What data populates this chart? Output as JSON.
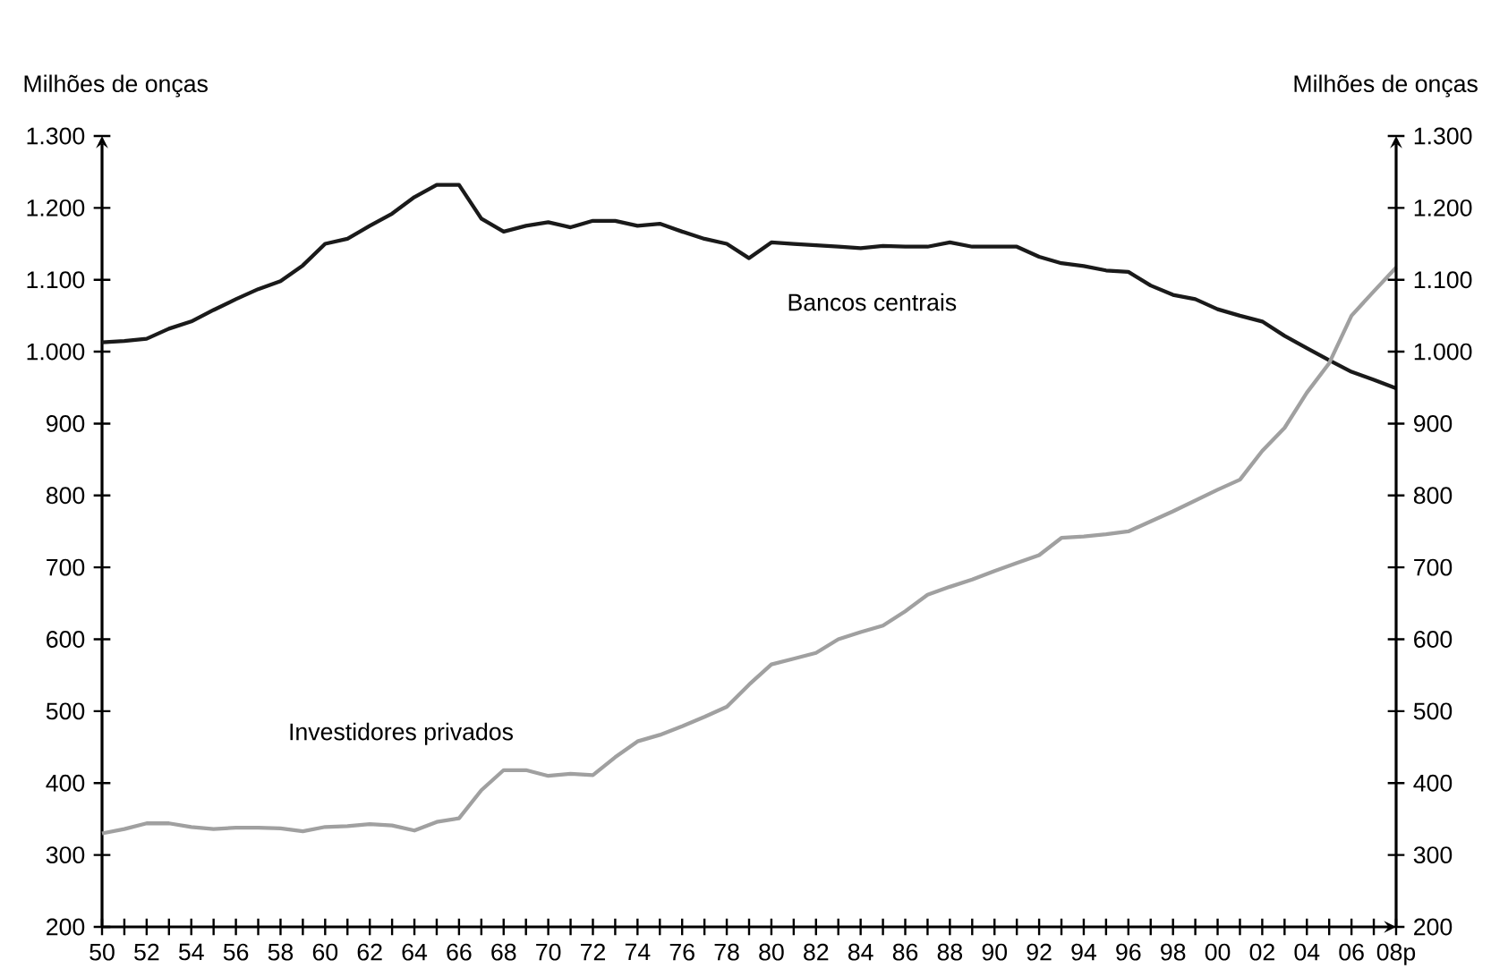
{
  "chart_data": {
    "type": "line",
    "ylabel": "Milhões de onças",
    "y2label": "Milhões de onças",
    "categories": [
      "50",
      null,
      "52",
      null,
      "54",
      null,
      "56",
      null,
      "58",
      null,
      "60",
      null,
      "62",
      null,
      "64",
      null,
      "66",
      null,
      "68",
      null,
      "70",
      null,
      "72",
      null,
      "74",
      null,
      "76",
      null,
      "78",
      null,
      "80",
      null,
      "82",
      null,
      "84",
      null,
      "86",
      null,
      "88",
      null,
      "90",
      null,
      "92",
      null,
      "94",
      null,
      "96",
      null,
      "98",
      null,
      "00",
      null,
      "02",
      null,
      "04",
      null,
      "06",
      null,
      "08p"
    ],
    "series": [
      {
        "name": "Bancos centrais",
        "color": "#1a1a1a",
        "values": [
          1013,
          1015,
          1018,
          1032,
          1042,
          1058,
          1073,
          1087,
          1098,
          1120,
          1150,
          1157,
          1175,
          1192,
          1215,
          1232,
          1232,
          1185,
          1167,
          1175,
          1180,
          1173,
          1182,
          1182,
          1175,
          1178,
          1167,
          1157,
          1150,
          1130,
          1152,
          1150,
          1148,
          1146,
          1144,
          1147,
          1146,
          1146,
          1152,
          1146,
          1146,
          1146,
          1132,
          1123,
          1119,
          1113,
          1111,
          1092,
          1079,
          1073,
          1059,
          1050,
          1042,
          1022,
          1005,
          988,
          972,
          961,
          949
        ]
      },
      {
        "name": "Investidores privados",
        "color": "#a0a0a0",
        "values": [
          330,
          336,
          344,
          344,
          339,
          336,
          338,
          338,
          337,
          333,
          339,
          340,
          343,
          341,
          334,
          346,
          351,
          390,
          418,
          418,
          410,
          413,
          411,
          436,
          458,
          467,
          479,
          492,
          506,
          537,
          565,
          573,
          581,
          600,
          610,
          619,
          639,
          662,
          673,
          683,
          695,
          706,
          717,
          741,
          743,
          746,
          750,
          764,
          778,
          793,
          808,
          822,
          862,
          894,
          943,
          984,
          1050,
          1084,
          1117
        ]
      }
    ],
    "ylim": [
      200,
      1300
    ],
    "yticks": [
      200,
      300,
      400,
      500,
      600,
      700,
      800,
      900,
      {
        "value": 1000,
        "label": "1.000"
      },
      {
        "value": 1100,
        "label": "1.100"
      },
      {
        "value": 1200,
        "label": "1.200"
      },
      {
        "value": 1300,
        "label": "1.300"
      }
    ],
    "y2lim": [
      200,
      1300
    ],
    "y2ticks": [
      200,
      300,
      400,
      500,
      600,
      700,
      800,
      900,
      {
        "value": 1000,
        "label": "1.000"
      },
      {
        "value": 1100,
        "label": "1.100"
      },
      {
        "value": 1200,
        "label": "1.200"
      },
      {
        "value": 1300,
        "label": "1.300"
      }
    ],
    "grid": false,
    "legend": false,
    "marker": "none",
    "line_style": "solid"
  }
}
